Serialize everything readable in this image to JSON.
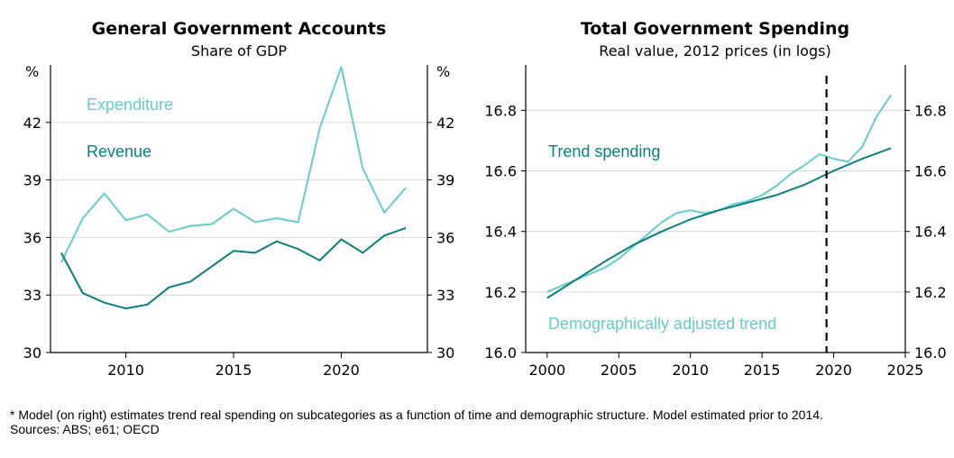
{
  "colors": {
    "light_teal": "#66CCCC",
    "dark_teal": "#0A7F7F",
    "grid": "#d9d9d9",
    "axis": "#000000",
    "vline": "#000000"
  },
  "chart_data": [
    {
      "type": "line",
      "title": "General Government Accounts",
      "subtitle": "Share of GDP",
      "left_axis_unit": "%",
      "right_axis_unit": "%",
      "xlim": [
        2006.5,
        2024.0
      ],
      "ylim": [
        30,
        45
      ],
      "x_ticks": [
        2010,
        2015,
        2020
      ],
      "y_ticks": [
        30,
        33,
        36,
        39,
        42
      ],
      "grid": true,
      "annotations": [
        {
          "text": "Expenditure",
          "series": "Expenditure"
        },
        {
          "text": "Revenue",
          "series": "Revenue"
        }
      ],
      "series": [
        {
          "name": "Expenditure",
          "color": "#66CCCC",
          "x": [
            2007,
            2008,
            2009,
            2010,
            2011,
            2012,
            2013,
            2014,
            2015,
            2016,
            2017,
            2018,
            2019,
            2020,
            2021,
            2022,
            2023
          ],
          "y": [
            34.7,
            37.0,
            38.3,
            36.9,
            37.2,
            36.3,
            36.6,
            36.7,
            37.5,
            36.8,
            37.0,
            36.8,
            41.7,
            44.9,
            39.6,
            37.3,
            38.6
          ]
        },
        {
          "name": "Revenue",
          "color": "#0A7F7F",
          "x": [
            2007,
            2008,
            2009,
            2010,
            2011,
            2012,
            2013,
            2014,
            2015,
            2016,
            2017,
            2018,
            2019,
            2020,
            2021,
            2022,
            2023
          ],
          "y": [
            35.2,
            33.1,
            32.6,
            32.3,
            32.5,
            33.4,
            33.7,
            34.5,
            35.3,
            35.2,
            35.8,
            35.4,
            34.8,
            35.9,
            35.2,
            36.1,
            36.5
          ]
        }
      ]
    },
    {
      "type": "line",
      "title": "Total Government Spending",
      "subtitle": "Real value, 2012 prices (in logs)",
      "xlim": [
        1998.5,
        2025.0
      ],
      "ylim": [
        16.0,
        16.95
      ],
      "x_ticks": [
        2000,
        2005,
        2010,
        2015,
        2020,
        2025
      ],
      "y_ticks": [
        16.0,
        16.2,
        16.4,
        16.6,
        16.8
      ],
      "grid": true,
      "vline_x": 2019.5,
      "annotations": [
        {
          "text": "Trend spending",
          "series": "Trend spending"
        },
        {
          "text": "Demographically adjusted trend",
          "series": "Demographically adjusted trend"
        }
      ],
      "series": [
        {
          "name": "Demographically adjusted trend",
          "color": "#66CCCC",
          "x": [
            2000,
            2001,
            2002,
            2003,
            2004,
            2005,
            2006,
            2007,
            2008,
            2009,
            2010,
            2011,
            2012,
            2013,
            2014,
            2015,
            2016,
            2017,
            2018,
            2019,
            2020,
            2021,
            2022,
            2023,
            2024
          ],
          "y": [
            16.2,
            16.22,
            16.24,
            16.26,
            16.28,
            16.31,
            16.35,
            16.39,
            16.43,
            16.46,
            16.47,
            16.46,
            16.47,
            16.49,
            16.5,
            16.52,
            16.55,
            16.59,
            16.62,
            16.655,
            16.64,
            16.63,
            16.68,
            16.78,
            16.85
          ]
        },
        {
          "name": "Trend spending",
          "color": "#0A7F7F",
          "x": [
            2000,
            2002,
            2004,
            2006,
            2008,
            2010,
            2012,
            2014,
            2016,
            2018,
            2020,
            2022,
            2024
          ],
          "y": [
            16.18,
            16.24,
            16.3,
            16.355,
            16.4,
            16.44,
            16.47,
            16.495,
            16.52,
            16.555,
            16.6,
            16.64,
            16.675
          ]
        }
      ]
    }
  ],
  "notes": {
    "footnote": "* Model (on right) estimates trend real spending on subcategories as a function of time and demographic structure. Model estimated prior to 2014.",
    "sources": "Sources: ABS; e61; OECD"
  }
}
